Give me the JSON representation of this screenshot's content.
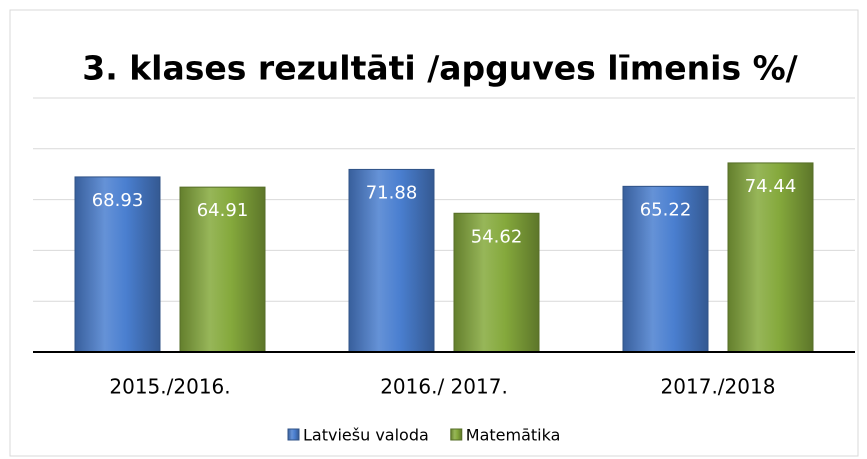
{
  "chart_data": {
    "type": "bar",
    "title": "3. klases rezultāti /apguves līmenis %/",
    "categories": [
      "2015./2016.",
      "2016./ 2017.",
      "2017./2018"
    ],
    "series": [
      {
        "name": "Latviešu valoda",
        "color": "#4a7fd0",
        "values": [
          68.93,
          71.88,
          65.22
        ]
      },
      {
        "name": "Matemātika",
        "color": "#85a93c",
        "values": [
          64.91,
          54.62,
          74.44
        ]
      }
    ],
    "ylim": [
      0,
      100
    ],
    "yticks": [
      0,
      20,
      40,
      60,
      80,
      100
    ],
    "grid": true,
    "legend": "bottom"
  }
}
